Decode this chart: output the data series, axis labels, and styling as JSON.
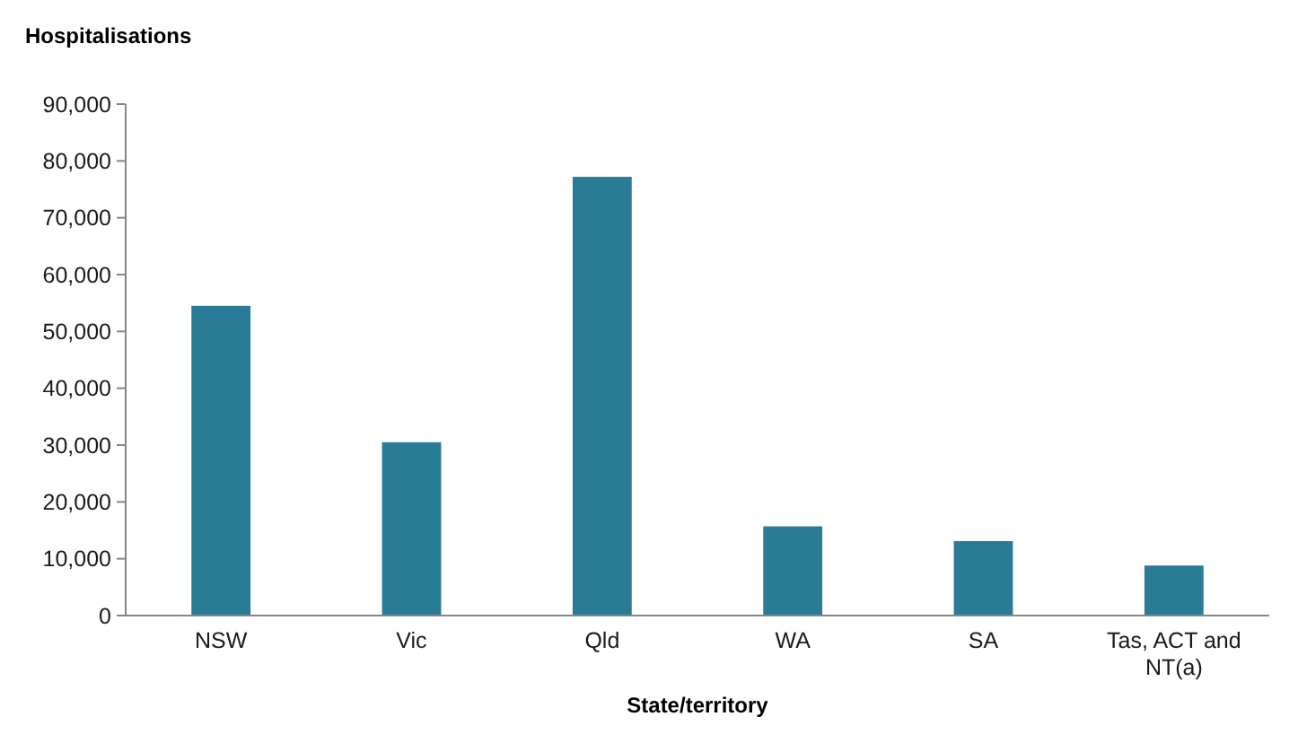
{
  "chart_data": {
    "type": "bar",
    "ylabel": "Hospitalisations",
    "xlabel": "State/territory",
    "categories": [
      "NSW",
      "Vic",
      "Qld",
      "WA",
      "SA",
      "Tas, ACT and NT(a)"
    ],
    "values": [
      54500,
      30500,
      77200,
      15700,
      13100,
      8800
    ],
    "color": "#2a7b96",
    "ylim": [
      0,
      90000
    ],
    "yticks": [
      {
        "value": 0,
        "label": "0"
      },
      {
        "value": 10000,
        "label": "10,000"
      },
      {
        "value": 20000,
        "label": "20,000"
      },
      {
        "value": 30000,
        "label": "30,000"
      },
      {
        "value": 40000,
        "label": "40,000"
      },
      {
        "value": 50000,
        "label": "50,000"
      },
      {
        "value": 60000,
        "label": "60,000"
      },
      {
        "value": 70000,
        "label": "70,000"
      },
      {
        "value": 80000,
        "label": "80,000"
      },
      {
        "value": 90000,
        "label": "90,000"
      }
    ],
    "grid": false
  }
}
